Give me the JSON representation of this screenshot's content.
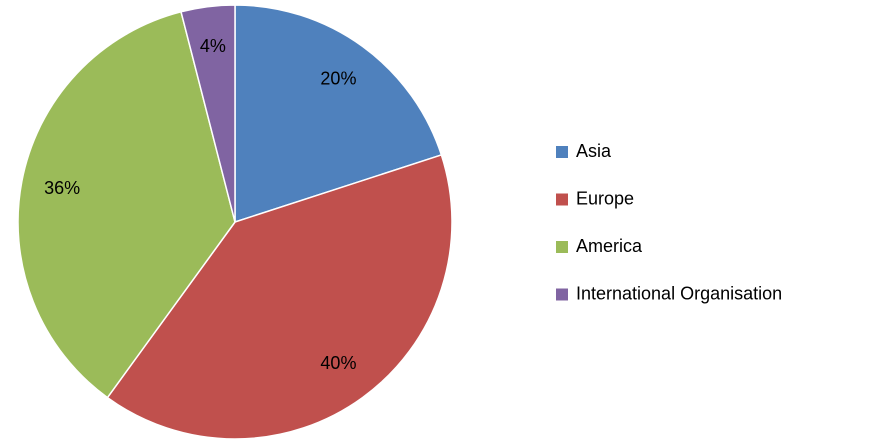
{
  "chart_data": {
    "type": "pie",
    "categories": [
      "Asia",
      "Europe",
      "America",
      "International Organisation"
    ],
    "values": [
      20,
      40,
      36,
      4
    ],
    "value_labels": [
      "20%",
      "40%",
      "36%",
      "4%"
    ],
    "colors": [
      "#4f81bd",
      "#c0504d",
      "#9bbb59",
      "#8064a2"
    ],
    "legend": "right"
  }
}
